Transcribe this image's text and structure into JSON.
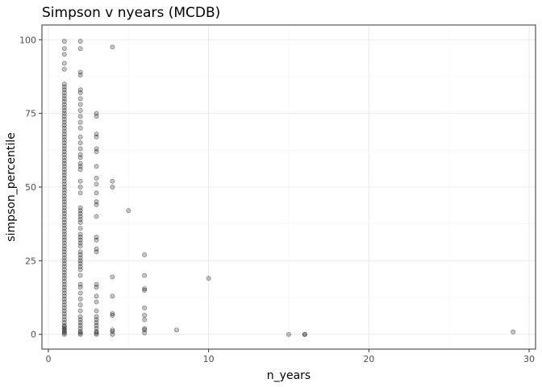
{
  "chart_data": {
    "type": "scatter",
    "title": "Simpson v nyears (MCDB)",
    "xlabel": "n_years",
    "ylabel": "simpson_percentile",
    "xlim": [
      -0.4,
      30.4
    ],
    "ylim": [
      -5,
      105
    ],
    "x_ticks": [
      0,
      10,
      20,
      30
    ],
    "y_ticks": [
      0,
      25,
      50,
      75,
      100
    ],
    "x_tick_labels": [
      "0",
      "10",
      "20",
      "30"
    ],
    "y_tick_labels": [
      "0",
      "25",
      "50",
      "75",
      "100"
    ],
    "grid": true,
    "point_color": "#000000",
    "point_alpha": 0.22,
    "points_by_x": [
      {
        "x": 1,
        "y": [
          99.5,
          97,
          95,
          92,
          90,
          85,
          84,
          83,
          82,
          81,
          80,
          79,
          78,
          77,
          76,
          75,
          74,
          73,
          72,
          71,
          70,
          69,
          68,
          67,
          66,
          65,
          64,
          63,
          62,
          61,
          60,
          59,
          58,
          57,
          56,
          55,
          54,
          53,
          52,
          51,
          50,
          49,
          48,
          47,
          46,
          45,
          44,
          43,
          42,
          41,
          40,
          39,
          38,
          37,
          36,
          35,
          34,
          33,
          32,
          31,
          30,
          29,
          28,
          27,
          26,
          25,
          24,
          23,
          22,
          21,
          20,
          19,
          18,
          17,
          16,
          15,
          14,
          13,
          12,
          11,
          10,
          9,
          8,
          7,
          6,
          5,
          4,
          3,
          2.5,
          2,
          1.5,
          1,
          0.5,
          0
        ]
      },
      {
        "x": 2,
        "y": [
          99.5,
          97,
          89,
          88,
          83,
          82,
          80,
          78,
          76,
          74,
          72,
          70,
          67,
          65,
          63,
          61,
          60,
          58,
          57,
          56,
          52,
          50,
          48,
          43,
          42,
          41,
          40,
          39,
          38,
          36,
          34,
          33,
          32,
          31,
          30,
          28,
          27,
          26,
          25,
          24,
          23,
          22,
          20,
          17,
          16,
          14,
          12,
          10,
          8,
          6,
          5,
          4,
          3,
          2,
          1,
          0.5,
          0
        ]
      },
      {
        "x": 3,
        "y": [
          75,
          74,
          68,
          67,
          63,
          62,
          57,
          53,
          51,
          48,
          45,
          44,
          40,
          33,
          32,
          29,
          28,
          17,
          16,
          13,
          11,
          8,
          6,
          5,
          4,
          3,
          2,
          1,
          0.5,
          0
        ]
      },
      {
        "x": 4,
        "y": [
          97.5,
          52,
          50,
          19.5,
          13,
          7,
          6.5,
          1.5,
          1,
          0
        ]
      },
      {
        "x": 5,
        "y": [
          42
        ]
      },
      {
        "x": 6,
        "y": [
          27,
          20,
          15.5,
          15,
          9,
          6.5,
          5,
          2,
          1.5,
          0.5
        ]
      },
      {
        "x": 8,
        "y": [
          1.5
        ]
      },
      {
        "x": 10,
        "y": [
          19
        ]
      },
      {
        "x": 15,
        "y": [
          0
        ]
      },
      {
        "x": 16,
        "y": [
          0,
          0
        ]
      },
      {
        "x": 29,
        "y": [
          0.8
        ]
      }
    ]
  }
}
